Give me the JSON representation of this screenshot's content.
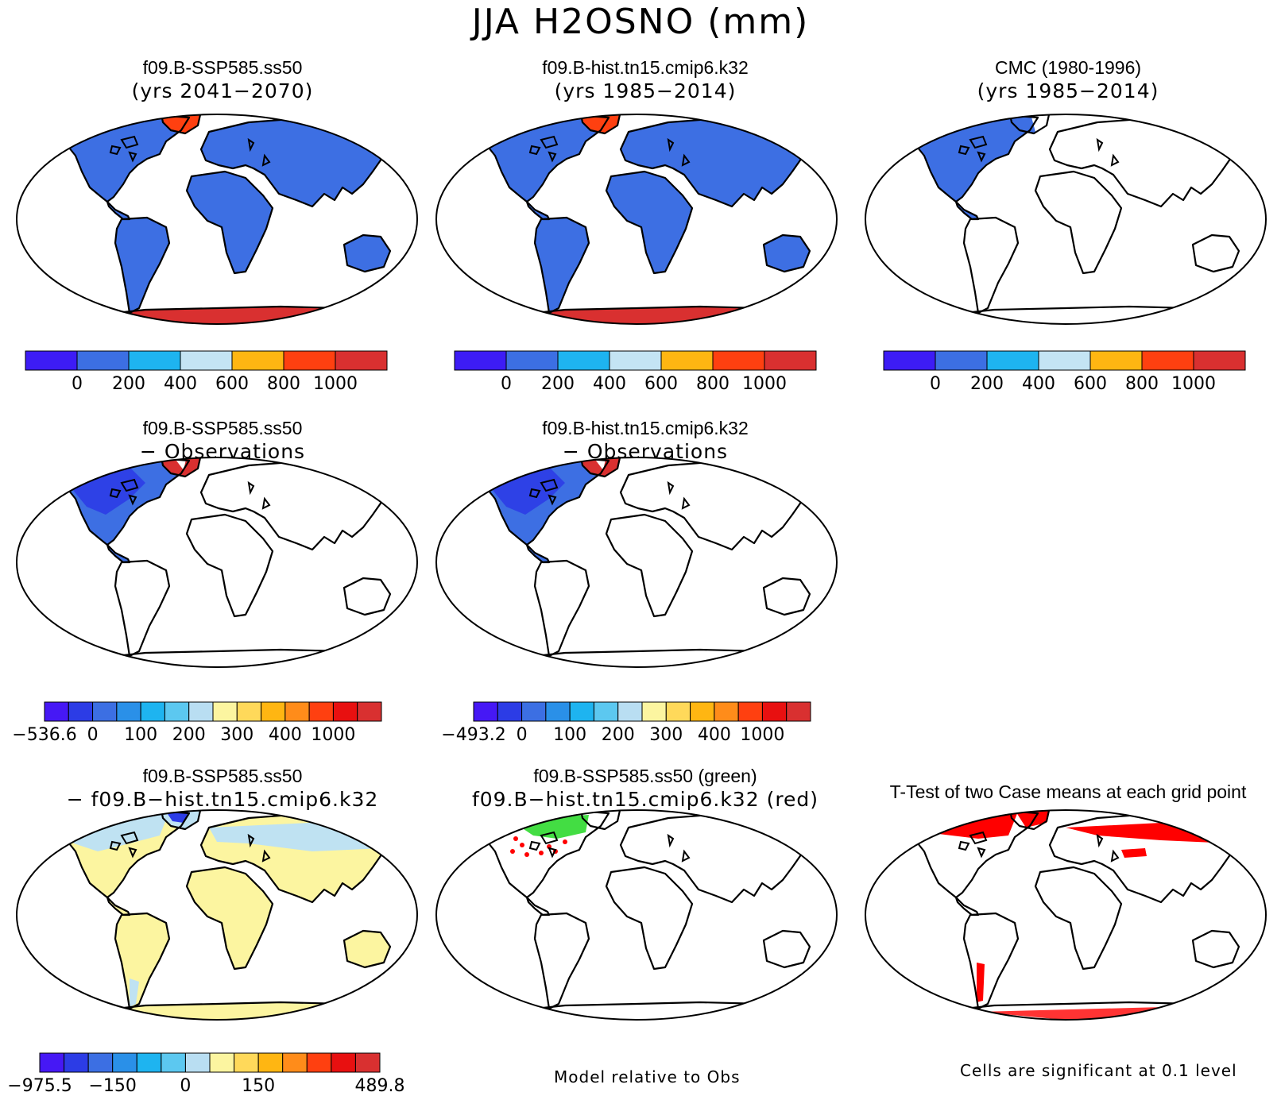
{
  "figure": {
    "title": "JJA H2OSNO (mm)"
  },
  "colors": {
    "blue_fill": "#3d6fe3",
    "orange_red": "#ff4010",
    "dark_red": "#d93030",
    "deep_blue": "#2c3ce6",
    "light_yellow": "#fcf5a0",
    "light_blue": "#bfe2f2",
    "sig_red": "#ff0000",
    "green": "#14d414"
  },
  "panels": [
    {
      "line1": "f09.B-SSP585.ss50",
      "line2": "(yrs 2041−2070)"
    },
    {
      "line1": "f09.B-hist.tn15.cmip6.k32",
      "line2": "(yrs 1985−2014)"
    },
    {
      "line1": "CMC (1980-1996)",
      "line2": "(yrs 1985−2014)"
    },
    {
      "line1": "f09.B-SSP585.ss50",
      "line2": "− Observations"
    },
    {
      "line1": "f09.B-hist.tn15.cmip6.k32",
      "line2": "− Observations"
    },
    {
      "line1": "f09.B-SSP585.ss50",
      "line2": "− f09.B−hist.tn15.cmip6.k32"
    },
    {
      "line1": "f09.B-SSP585.ss50 (green)",
      "line2": "f09.B−hist.tn15.cmip6.k32 (red)"
    },
    {
      "line1": "T-Test of two Case means at each grid point"
    }
  ],
  "colorbars": {
    "abs": {
      "colors": [
        "#3d1cf5",
        "#3c6fe3",
        "#1eb4f0",
        "#c4e4f4",
        "#ffb612",
        "#ff4010",
        "#d93030"
      ],
      "labels": [
        "0",
        "200",
        "400",
        "600",
        "800",
        "1000"
      ]
    },
    "diff1": {
      "colors": [
        "#4618f5",
        "#2c3ce6",
        "#3c6fe3",
        "#2a90e8",
        "#1eb4f0",
        "#5cc8f0",
        "#b9def2",
        "#fcf5a0",
        "#ffd95a",
        "#ffb612",
        "#ff8c1a",
        "#ff4010",
        "#e81010",
        "#d93030"
      ],
      "labels": [
        "−536.6",
        "0",
        "100",
        "200",
        "300",
        "400",
        "1000"
      ]
    },
    "diff2": {
      "colors": [
        "#4618f5",
        "#2c3ce6",
        "#3c6fe3",
        "#2a90e8",
        "#1eb4f0",
        "#5cc8f0",
        "#b9def2",
        "#fcf5a0",
        "#ffd95a",
        "#ffb612",
        "#ff8c1a",
        "#ff4010",
        "#e81010",
        "#d93030"
      ],
      "labels": [
        "−493.2",
        "0",
        "100",
        "200",
        "300",
        "400",
        "1000"
      ]
    },
    "diff3": {
      "colors": [
        "#4618f5",
        "#2c3ce6",
        "#3c6fe3",
        "#2a90e8",
        "#1eb4f0",
        "#5cc8f0",
        "#b9def2",
        "#fcf5a0",
        "#ffd95a",
        "#ffb612",
        "#ff8c1a",
        "#ff4010",
        "#e81010",
        "#d93030"
      ],
      "labels": [
        "−975.5",
        "−150",
        "0",
        "150",
        "489.8"
      ]
    }
  },
  "notes": {
    "model_relative": "Model relative to Obs",
    "cells_significant": "Cells are significant at 0.1 level"
  }
}
